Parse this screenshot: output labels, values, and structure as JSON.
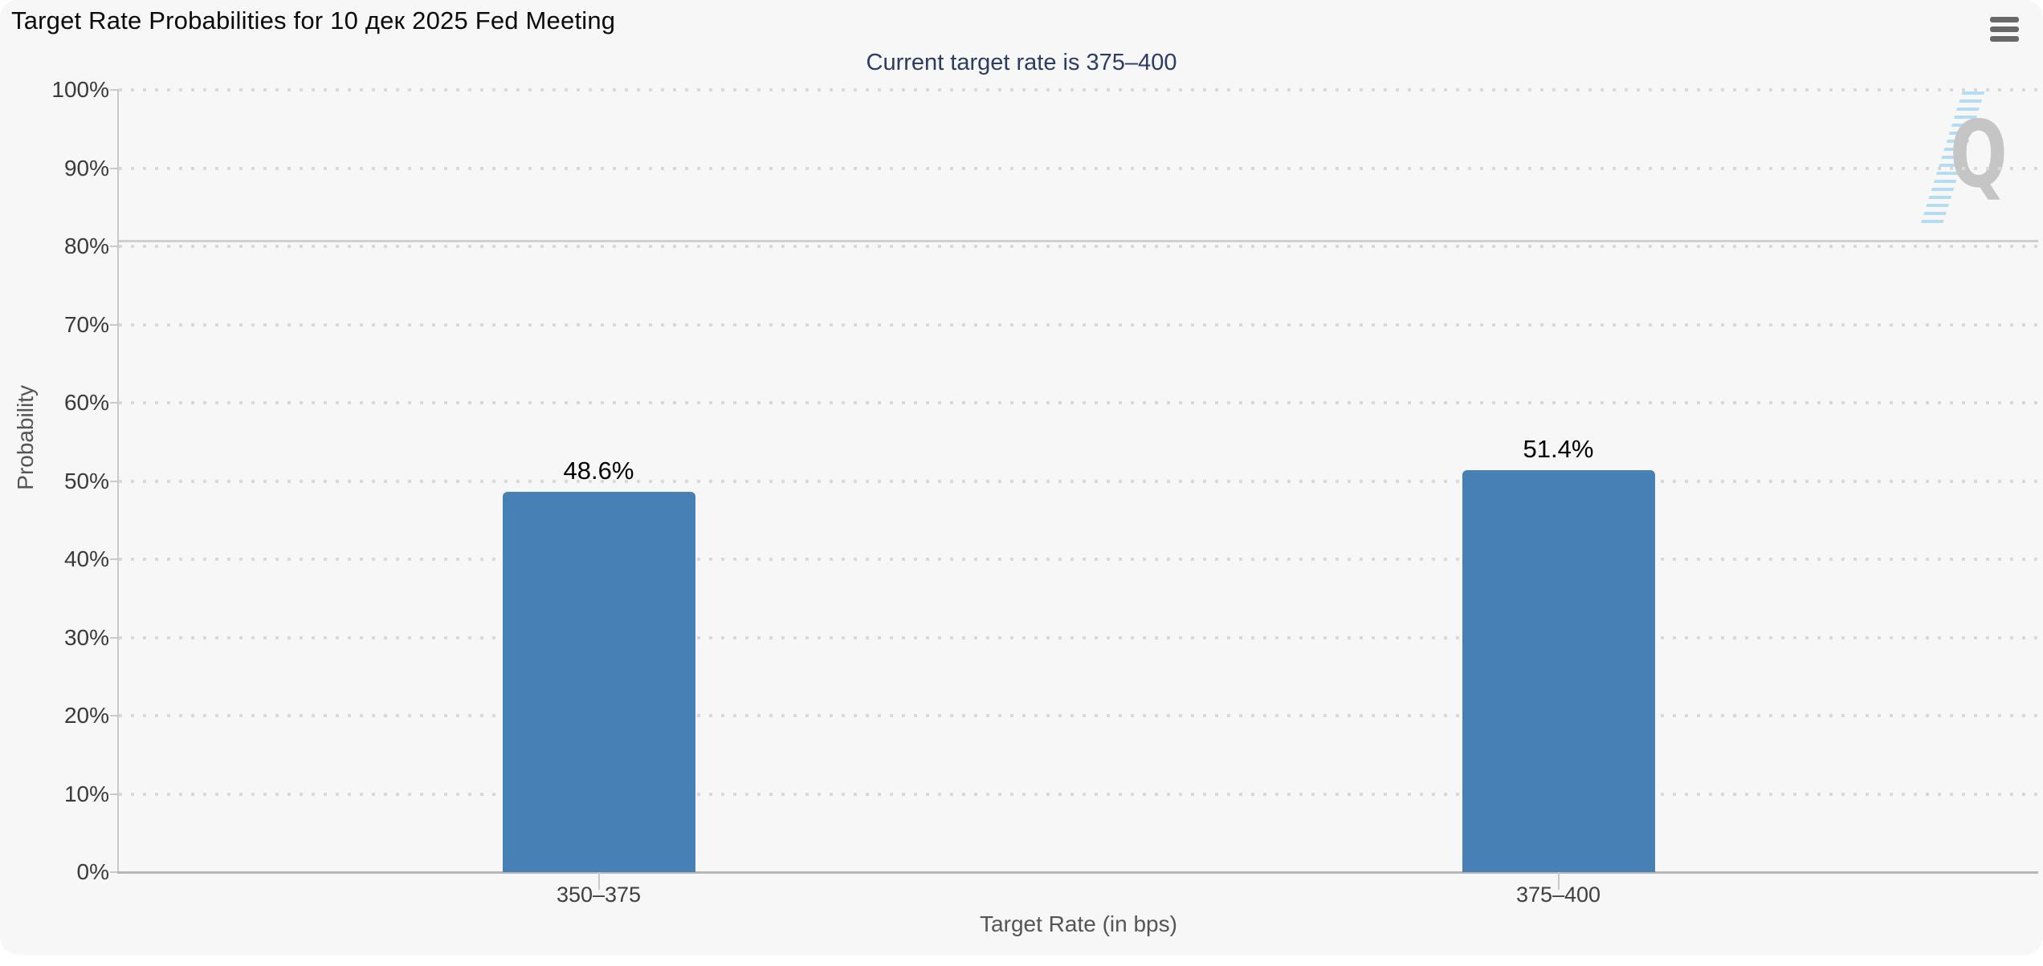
{
  "header": {
    "title": "Target Rate Probabilities for 10 дек 2025 Fed Meeting"
  },
  "chart_data": {
    "type": "bar",
    "title": "Target Rate Probabilities for 10 дек 2025 Fed Meeting",
    "subtitle": "Current target rate is 375–400",
    "categories": [
      "350–375",
      "375–400"
    ],
    "values": [
      48.6,
      51.4
    ],
    "value_labels": [
      "48.6%",
      "51.4%"
    ],
    "xlabel": "Target Rate (in bps)",
    "ylabel": "Probability",
    "ylim": [
      0,
      100
    ],
    "ytick_step": 10,
    "ytick_labels": [
      "0%",
      "10%",
      "20%",
      "30%",
      "40%",
      "50%",
      "60%",
      "70%",
      "80%",
      "90%",
      "100%"
    ],
    "grid": "dotted horizontal",
    "legend": "none",
    "bar_color": "#4680B4",
    "solid_line_pct": 80.7,
    "watermark_letter": "Q"
  },
  "icons": {
    "menu": "hamburger-menu-icon",
    "watermark": "quikstrike-q-logo"
  },
  "colors": {
    "background": "#f7f7f7",
    "page": "#ffffff",
    "bar": "#4680B4",
    "subtitle": "#2d3c64",
    "axis_label": "#3a3a3a",
    "axis_title": "#555555",
    "gridline": "#d9d9d9",
    "watermark_q": "#c5c5c5",
    "watermark_stripes": "#b4ddf4",
    "menu_icon": "#686868"
  }
}
